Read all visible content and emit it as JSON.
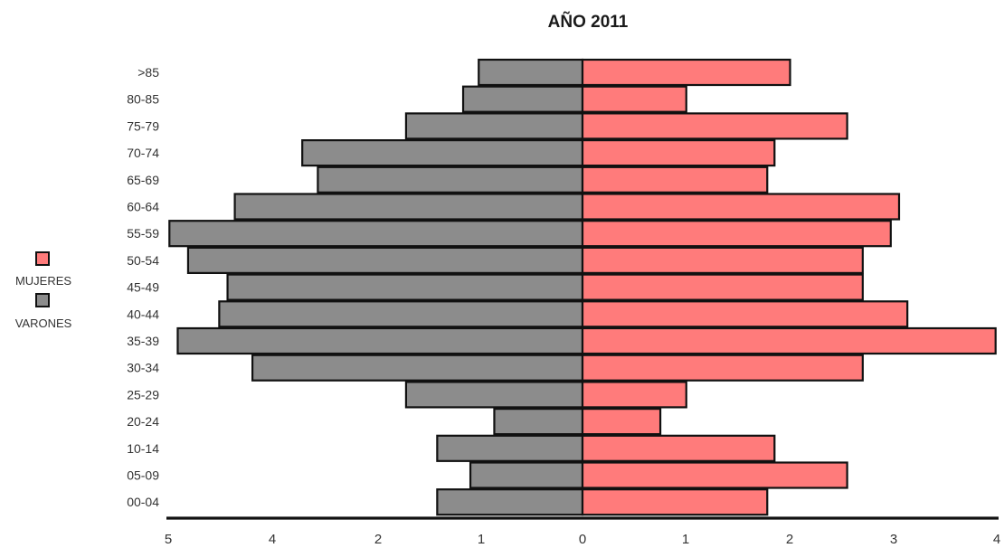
{
  "chart_data": {
    "type": "bar",
    "title": "AÑO 2011",
    "categories": [
      ">85",
      "80-85",
      "75-79",
      "70-74",
      "65-69",
      "60-64",
      "55-59",
      "50-54",
      "45-49",
      "40-44",
      "35-39",
      "30-34",
      "25-29",
      "20-24",
      "10-14",
      "05-09",
      "00-04"
    ],
    "series": [
      {
        "name": "VARONES",
        "color": "#8c8c8c",
        "side": "left",
        "values": [
          1.0,
          1.15,
          1.7,
          2.7,
          2.55,
          3.35,
          3.98,
          3.8,
          3.42,
          3.5,
          3.9,
          3.18,
          1.7,
          0.85,
          1.4,
          1.08,
          1.4
        ]
      },
      {
        "name": "MUJERES",
        "color": "#ff7b7b",
        "side": "right",
        "values": [
          2.0,
          1.0,
          2.55,
          1.85,
          1.78,
          3.05,
          2.97,
          2.7,
          2.7,
          3.13,
          3.98,
          2.7,
          1.0,
          0.75,
          1.85,
          2.55,
          1.78
        ]
      }
    ],
    "x_ticks_left": [
      "5",
      "4",
      "2",
      "1",
      "0"
    ],
    "x_ticks_right": [
      "1",
      "2",
      "3",
      "4"
    ],
    "xlim": [
      0,
      4
    ],
    "legend_position": "left",
    "grid": false
  }
}
